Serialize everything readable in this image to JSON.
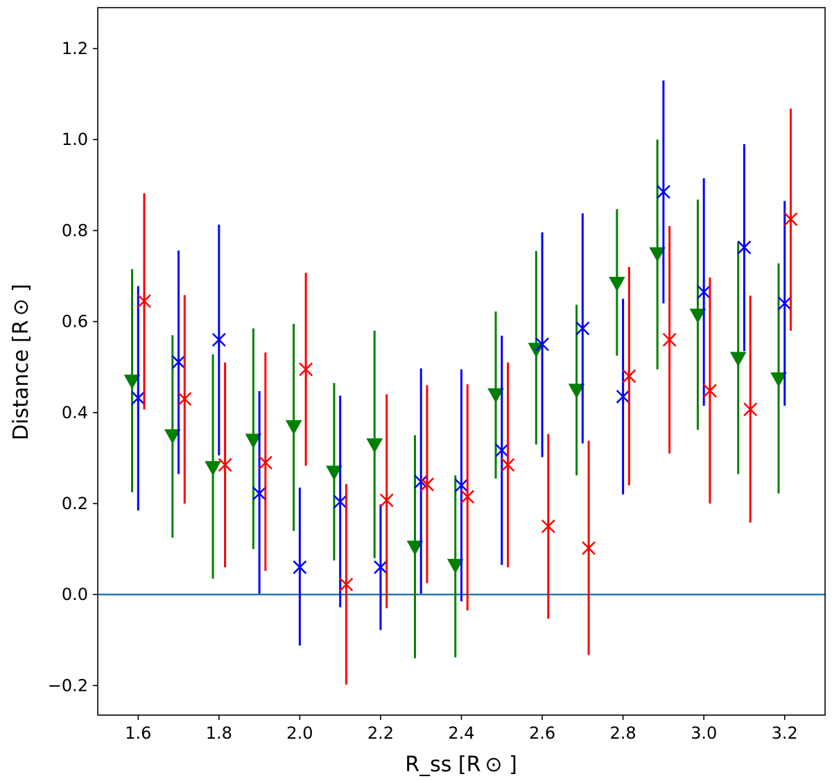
{
  "chart_data": {
    "type": "scatter",
    "title": "",
    "xlabel": "R_ss [R ⊙ ]",
    "ylabel": "Distance [R ⊙ ]",
    "xlim": [
      1.5,
      3.3
    ],
    "ylim": [
      -0.265,
      1.29
    ],
    "grid": false,
    "legend": "none",
    "x_ticks": [
      1.6,
      1.8,
      2.0,
      2.2,
      2.4,
      2.6,
      2.8,
      3.0,
      3.2
    ],
    "x_tick_labels": [
      "1.6",
      "1.8",
      "2.0",
      "2.2",
      "2.4",
      "2.6",
      "2.8",
      "3.0",
      "3.2"
    ],
    "y_ticks": [
      -0.2,
      0.0,
      0.2,
      0.4,
      0.6,
      0.8,
      1.0,
      1.2
    ],
    "y_tick_labels": [
      "−0.2",
      "0.0",
      "0.2",
      "0.4",
      "0.6",
      "0.8",
      "1.0",
      "1.2"
    ],
    "reference_line": {
      "y": 0.0,
      "color": "#1f77b4"
    },
    "series": [
      {
        "color": "#008000",
        "marker": "triangle-down",
        "x": [
          1.585,
          1.685,
          1.785,
          1.885,
          1.985,
          2.085,
          2.185,
          2.285,
          2.385,
          2.485,
          2.585,
          2.685,
          2.785,
          2.885,
          2.985,
          3.085,
          3.185
        ],
        "y": [
          0.47,
          0.35,
          0.28,
          0.34,
          0.37,
          0.27,
          0.33,
          0.105,
          0.065,
          0.44,
          0.54,
          0.45,
          0.685,
          0.75,
          0.615,
          0.52,
          0.475
        ],
        "ylow": [
          0.225,
          0.125,
          0.035,
          0.1,
          0.14,
          0.075,
          0.08,
          -0.14,
          -0.138,
          0.255,
          0.33,
          0.262,
          0.525,
          0.495,
          0.362,
          0.265,
          0.222
        ],
        "yhigh": [
          0.715,
          0.57,
          0.528,
          0.585,
          0.595,
          0.465,
          0.58,
          0.35,
          0.262,
          0.622,
          0.755,
          0.637,
          0.847,
          1.0,
          0.868,
          0.775,
          0.728
        ]
      },
      {
        "color": "#0000ff",
        "marker": "x",
        "x": [
          1.6,
          1.7,
          1.8,
          1.9,
          2.0,
          2.1,
          2.2,
          2.3,
          2.4,
          2.5,
          2.6,
          2.7,
          2.8,
          2.9,
          3.0,
          3.1,
          3.2
        ],
        "y": [
          0.432,
          0.511,
          0.56,
          0.222,
          0.06,
          0.204,
          0.06,
          0.248,
          0.24,
          0.317,
          0.55,
          0.585,
          0.435,
          0.885,
          0.665,
          0.763,
          0.64
        ],
        "ylow": [
          0.185,
          0.265,
          0.306,
          0.002,
          -0.112,
          -0.028,
          -0.078,
          0.002,
          -0.015,
          0.065,
          0.302,
          0.332,
          0.22,
          0.64,
          0.415,
          0.535,
          0.415
        ],
        "yhigh": [
          0.678,
          0.756,
          0.813,
          0.447,
          0.235,
          0.437,
          0.198,
          0.497,
          0.495,
          0.569,
          0.796,
          0.838,
          0.65,
          1.13,
          0.915,
          0.99,
          0.865
        ]
      },
      {
        "color": "#ff0000",
        "marker": "x",
        "x": [
          1.615,
          1.715,
          1.815,
          1.915,
          2.015,
          2.115,
          2.215,
          2.315,
          2.415,
          2.515,
          2.615,
          2.715,
          2.815,
          2.915,
          3.015,
          3.115,
          3.215
        ],
        "y": [
          0.645,
          0.43,
          0.285,
          0.29,
          0.495,
          0.022,
          0.207,
          0.242,
          0.215,
          0.285,
          0.15,
          0.102,
          0.48,
          0.56,
          0.448,
          0.407,
          0.825
        ],
        "ylow": [
          0.407,
          0.2,
          0.06,
          0.052,
          0.283,
          -0.198,
          -0.03,
          0.025,
          -0.035,
          0.06,
          -0.053,
          -0.133,
          0.24,
          0.31,
          0.2,
          0.158,
          0.58
        ],
        "yhigh": [
          0.882,
          0.658,
          0.51,
          0.532,
          0.707,
          0.243,
          0.44,
          0.46,
          0.462,
          0.51,
          0.353,
          0.338,
          0.72,
          0.81,
          0.697,
          0.657,
          1.068
        ]
      }
    ]
  }
}
